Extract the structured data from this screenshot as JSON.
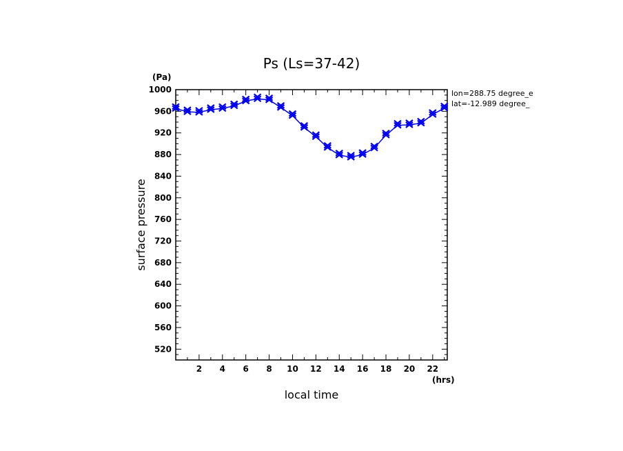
{
  "chart_data": {
    "type": "line",
    "title": "Ps (Ls=37-42)",
    "xlabel": "local time",
    "ylabel": "surface pressure",
    "x_unit": "(hrs)",
    "y_unit": "(Pa)",
    "annotations": [
      "lon=288.75 degree_e",
      "lat=-12.989 degree_"
    ],
    "xlim": [
      0,
      23.25
    ],
    "ylim": [
      500,
      1000
    ],
    "x_ticks": [
      2,
      4,
      6,
      8,
      10,
      12,
      14,
      16,
      18,
      20,
      22
    ],
    "y_ticks": [
      520,
      560,
      600,
      640,
      680,
      720,
      760,
      800,
      840,
      880,
      920,
      960,
      1000
    ],
    "grid": false,
    "series": [
      {
        "color": "#0000ee",
        "marker": "x",
        "x": [
          0,
          1,
          2,
          3,
          4,
          5,
          6,
          7,
          8,
          9,
          10,
          11,
          12,
          13,
          14,
          15,
          16,
          17,
          18,
          19,
          20,
          21,
          22,
          23
        ],
        "y": [
          965,
          959,
          958,
          963,
          965,
          970,
          979,
          983,
          981,
          967,
          952,
          930,
          913,
          893,
          879,
          875,
          880,
          892,
          916,
          934,
          935,
          938,
          954,
          966
        ]
      }
    ]
  }
}
